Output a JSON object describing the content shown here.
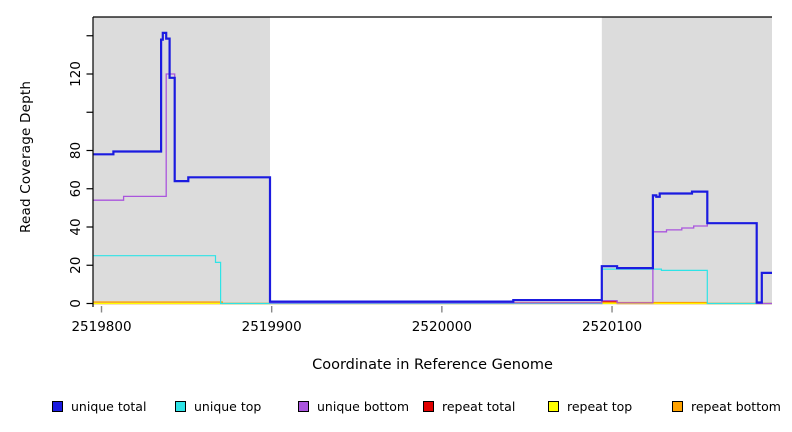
{
  "chart_data": {
    "type": "line",
    "subtype": "step-coverage",
    "title": "",
    "xlabel": "Coordinate in Reference Genome",
    "ylabel": "Read Coverage Depth",
    "xlim": [
      2519795,
      2520194
    ],
    "ylim": [
      0,
      150
    ],
    "grid": false,
    "legend_position": "bottom",
    "x_ticks": [
      2519800,
      2519900,
      2520000,
      2520100
    ],
    "x_tick_labels": [
      "2519800",
      "2519900",
      "2520000",
      "2520100"
    ],
    "y_ticks": [
      0,
      20,
      40,
      60,
      80,
      100,
      120,
      140
    ],
    "y_tick_labels": [
      "0",
      "20",
      "40",
      "60",
      "80",
      "",
      "120",
      ""
    ],
    "shade_color": "#dcdcdc",
    "shaded_regions": [
      {
        "name": "left-repeat-flank",
        "x0": 2519795,
        "x1": 2519899
      },
      {
        "name": "right-repeat-flank",
        "x0": 2520094,
        "x1": 2520194
      }
    ],
    "series": [
      {
        "id": "unique-total",
        "name": "unique total",
        "color": "#1b1be0",
        "width": 2.2,
        "steps": [
          [
            2519795,
            78
          ],
          [
            2519807,
            79.5
          ],
          [
            2519835,
            138
          ],
          [
            2519836,
            141.5
          ],
          [
            2519838,
            138.5
          ],
          [
            2519840,
            118
          ],
          [
            2519843,
            64
          ],
          [
            2519851,
            66
          ],
          [
            2519899,
            1
          ],
          [
            2520042,
            1.8
          ],
          [
            2520094,
            19.5
          ],
          [
            2520103,
            18.5
          ],
          [
            2520124,
            56.5
          ],
          [
            2520126,
            55.8
          ],
          [
            2520128,
            57.5
          ],
          [
            2520147,
            58.5
          ],
          [
            2520156,
            42
          ],
          [
            2520185,
            0.5
          ],
          [
            2520188,
            16
          ],
          [
            2520194,
            16
          ]
        ]
      },
      {
        "id": "unique-top",
        "name": "unique top",
        "color": "#2ee3e6",
        "width": 1.2,
        "steps": [
          [
            2519795,
            25
          ],
          [
            2519867,
            21.5
          ],
          [
            2519870,
            0
          ],
          [
            2520094,
            18
          ],
          [
            2520129,
            17.3
          ],
          [
            2520156,
            0
          ],
          [
            2520194,
            0
          ]
        ]
      },
      {
        "id": "unique-bottom",
        "name": "unique bottom",
        "color": "#aa55dd",
        "width": 1.3,
        "steps": [
          [
            2519795,
            54
          ],
          [
            2519813,
            56
          ],
          [
            2519838,
            120
          ],
          [
            2519843,
            64
          ],
          [
            2519851,
            66
          ],
          [
            2519899,
            0.3
          ],
          [
            2520094,
            1.5
          ],
          [
            2520103,
            0.3
          ],
          [
            2520124,
            37.5
          ],
          [
            2520132,
            38.5
          ],
          [
            2520141,
            39.5
          ],
          [
            2520148,
            40.5
          ],
          [
            2520156,
            42
          ],
          [
            2520185,
            0
          ],
          [
            2520194,
            0
          ]
        ]
      },
      {
        "id": "repeat-total",
        "name": "repeat total",
        "color": "#e00000",
        "width": 1.2,
        "steps": [
          [
            2519795,
            0
          ],
          [
            2520094,
            1
          ],
          [
            2520103,
            0
          ],
          [
            2520194,
            0
          ]
        ]
      },
      {
        "id": "repeat-top",
        "name": "repeat top",
        "color": "#ffff00",
        "width": 1.2,
        "steps": [
          [
            2519795,
            0
          ],
          [
            2520194,
            0
          ]
        ]
      },
      {
        "id": "repeat-bottom",
        "name": "repeat bottom",
        "color": "#ffa200",
        "width": 1.2,
        "steps": [
          [
            2519795,
            0.8
          ],
          [
            2519871,
            0
          ],
          [
            2520042,
            0.5
          ],
          [
            2520156,
            0
          ],
          [
            2520194,
            0
          ]
        ]
      }
    ],
    "draw_order": [
      "repeat-total",
      "repeat-top",
      "repeat-bottom",
      "unique-top",
      "unique-bottom",
      "unique-total"
    ],
    "axis": {
      "tick_color_x": "#888888",
      "tick_color_y": "#000000",
      "border_color": "#000000"
    }
  }
}
